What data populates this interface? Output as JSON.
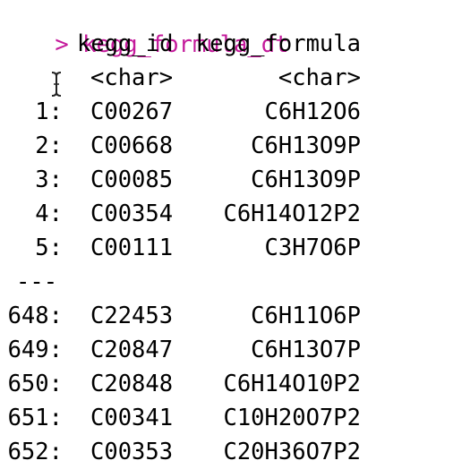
{
  "console": {
    "prompt": "> ",
    "command": "kegg_formula_dt",
    "colors": {
      "prompt": "#c41a9b",
      "text": "#000000"
    }
  },
  "table": {
    "columns": [
      {
        "name": "kegg_id",
        "type": "<char>"
      },
      {
        "name": "kegg_formula",
        "type": "<char>"
      }
    ],
    "head_rows": [
      {
        "index": "1:",
        "kegg_id": "C00267",
        "kegg_formula": "C6H12O6"
      },
      {
        "index": "2:",
        "kegg_id": "C00668",
        "kegg_formula": "C6H13O9P"
      },
      {
        "index": "3:",
        "kegg_id": "C00085",
        "kegg_formula": "C6H13O9P"
      },
      {
        "index": "4:",
        "kegg_id": "C00354",
        "kegg_formula": "C6H14O12P2"
      },
      {
        "index": "5:",
        "kegg_id": "C00111",
        "kegg_formula": "C3H7O6P"
      }
    ],
    "separator": "---",
    "tail_rows": [
      {
        "index": "648:",
        "kegg_id": "C22453",
        "kegg_formula": "C6H11O6P"
      },
      {
        "index": "649:",
        "kegg_id": "C20847",
        "kegg_formula": "C6H13O7P"
      },
      {
        "index": "650:",
        "kegg_id": "C20848",
        "kegg_formula": "C6H14O10P2"
      },
      {
        "index": "651:",
        "kegg_id": "C00341",
        "kegg_formula": "C10H20O7P2"
      },
      {
        "index": "652:",
        "kegg_id": "C00353",
        "kegg_formula": "C20H36O7P2"
      }
    ]
  }
}
